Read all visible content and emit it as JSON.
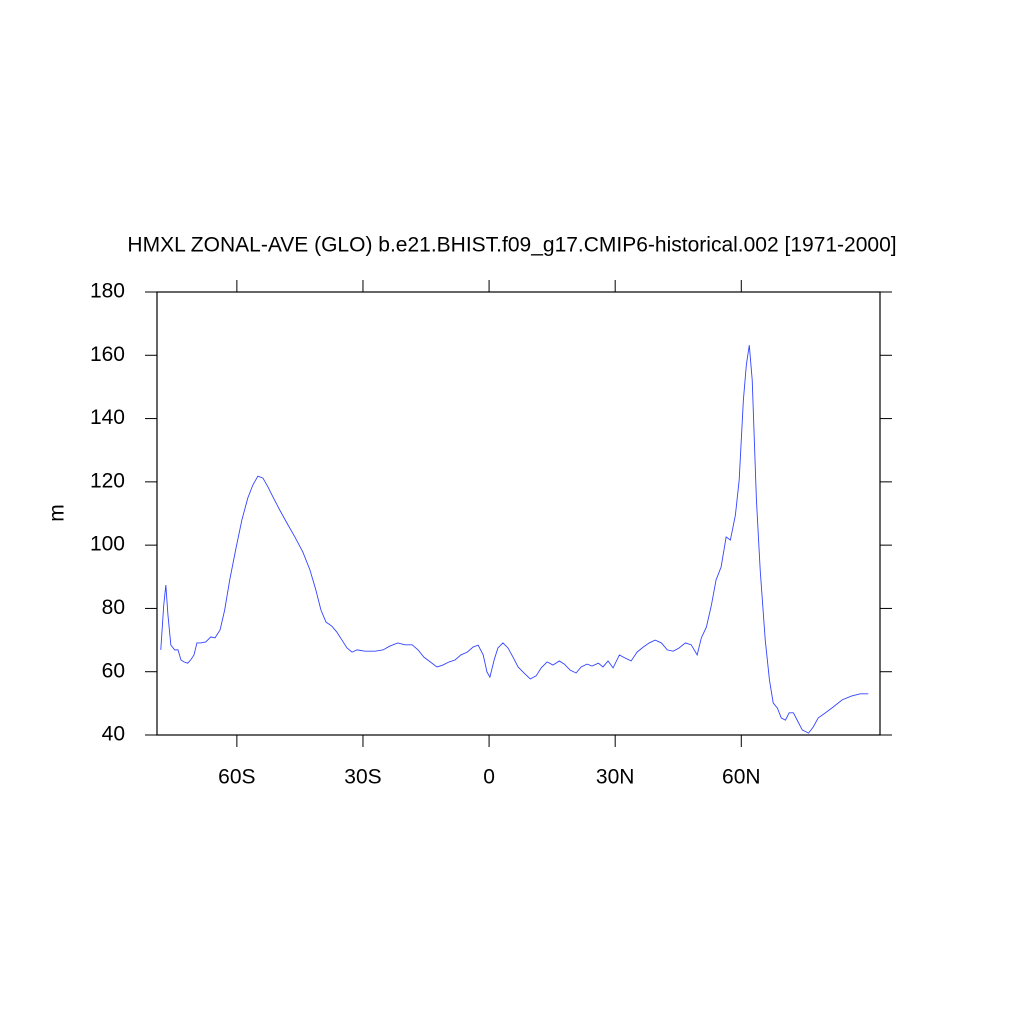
{
  "chart_data": {
    "type": "line",
    "title": "HMXL ZONAL-AVE (GLO) b.e21.BHIST.f09_g17.CMIP6-historical.002 [1971-2000]",
    "ylabel": "m",
    "color": "#3344ff",
    "xlim": [
      -79,
      93
    ],
    "ylim": [
      40,
      180
    ],
    "xticks": [
      {
        "value": -60,
        "label": "60S"
      },
      {
        "value": -30,
        "label": "30S"
      },
      0,
      {
        "value": 30,
        "label": "30N"
      },
      {
        "value": 60,
        "label": "60N"
      }
    ],
    "yticks": [
      40,
      60,
      80,
      100,
      120,
      140,
      160,
      180
    ],
    "x": [
      -78.1,
      -77.4,
      -76.9,
      -76.4,
      -75.7,
      -74.8,
      -74,
      -73.3,
      -72.6,
      -71.7,
      -71,
      -70.2,
      -69.5,
      -68.6,
      -67.4,
      -66.2,
      -65.2,
      -64,
      -62.9,
      -61.7,
      -60.2,
      -58.8,
      -57.4,
      -56.2,
      -55,
      -53.8,
      -52.6,
      -51.4,
      -49.8,
      -48.1,
      -46.2,
      -44.3,
      -42.6,
      -41.2,
      -40,
      -38.8,
      -37.4,
      -36.2,
      -35,
      -33.8,
      -32.6,
      -31.4,
      -29.5,
      -27.1,
      -25.2,
      -23.6,
      -21.7,
      -20,
      -18.3,
      -16.9,
      -15.5,
      -14,
      -12.4,
      -11,
      -9.5,
      -8.1,
      -6.7,
      -5.2,
      -3.8,
      -2.6,
      -1.4,
      -0.5,
      0.2,
      1.2,
      2.1,
      3.3,
      4.5,
      5.7,
      6.9,
      8.3,
      9.8,
      11.2,
      12.4,
      13.8,
      15.2,
      16.7,
      17.9,
      19.3,
      20.7,
      21.9,
      23.3,
      24.5,
      26,
      27.1,
      28.3,
      29.5,
      31,
      32.4,
      33.8,
      35.2,
      36.7,
      38.1,
      39.5,
      41,
      42.4,
      43.8,
      45.2,
      46.7,
      48.1,
      49.5,
      50.5,
      51.7,
      52.9,
      54,
      55.2,
      56.4,
      57.4,
      58.6,
      59.5,
      60.5,
      61.2,
      61.9,
      62.6,
      63.6,
      64.5,
      65.7,
      66.7,
      67.6,
      68.6,
      69.5,
      70.5,
      71.4,
      72.4,
      73.3,
      74.5,
      76,
      77.1,
      78.3,
      80,
      81.9,
      84,
      86.2,
      88.3,
      90.2
    ],
    "values": [
      66.9,
      81,
      87.4,
      78,
      68.4,
      66.9,
      66.9,
      63.7,
      63.1,
      62.7,
      63.7,
      65.3,
      69.1,
      69.1,
      69.4,
      71,
      70.7,
      73.2,
      79.5,
      89,
      99.1,
      108,
      114.9,
      119,
      121.8,
      121.2,
      118.4,
      115.2,
      111.1,
      107,
      102.6,
      97.8,
      92.1,
      85.8,
      79.5,
      75.7,
      74.4,
      72.5,
      70,
      67.5,
      66.2,
      66.9,
      66.5,
      66.5,
      66.9,
      68.1,
      69.1,
      68.5,
      68.5,
      66.9,
      64.6,
      63.1,
      61.5,
      62.1,
      63.1,
      63.7,
      65.3,
      66.2,
      67.8,
      68.4,
      65.3,
      59.9,
      58.3,
      63.7,
      67.5,
      69.1,
      67.5,
      64.6,
      61.5,
      59.6,
      57.7,
      58.7,
      61.2,
      63.1,
      62.1,
      63.4,
      62.4,
      60.5,
      59.6,
      61.5,
      62.4,
      61.8,
      62.7,
      61.5,
      63.4,
      61.2,
      65.3,
      64.3,
      63.4,
      66.2,
      67.8,
      69.1,
      70,
      69.1,
      66.9,
      66.5,
      67.5,
      69.1,
      68.5,
      65.3,
      70.7,
      74.1,
      81.1,
      89,
      93.1,
      102.6,
      101.6,
      109.5,
      120.6,
      145.9,
      156.9,
      163.2,
      152.2,
      114.3,
      92.1,
      70,
      57.4,
      50.1,
      48.5,
      45.4,
      44.7,
      47,
      47,
      44.7,
      41.6,
      40.6,
      42.5,
      45.4,
      47,
      48.9,
      51.1,
      52.3,
      53,
      53
    ]
  }
}
